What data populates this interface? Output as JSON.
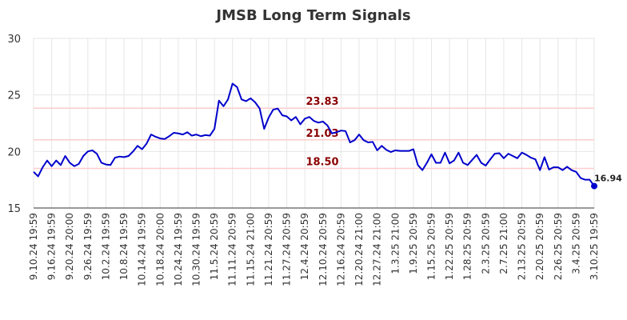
{
  "chart_data": {
    "type": "line",
    "title": "JMSB Long Term Signals",
    "xlabel": "",
    "ylabel": "",
    "ylim": [
      15,
      30
    ],
    "yticks": [
      15,
      20,
      25,
      30
    ],
    "grid": true,
    "x_tick_labels": [
      "9.10.24 19:59",
      "9.16.24 19:59",
      "9.20.24 20:00",
      "9.26.24 19:59",
      "10.2.24 19:59",
      "10.8.24 19:59",
      "10.14.24 19:59",
      "10.18.24 20:00",
      "10.24.24 19:59",
      "10.30.24 19:59",
      "11.5.24 20:59",
      "11.11.24 20:59",
      "11.15.24 21:00",
      "11.21.24 20:59",
      "11.27.24 20:59",
      "12.4.24 20:59",
      "12.10.24 20:59",
      "12.16.24 20:59",
      "12.20.24 21:00",
      "12.27.24 21:00",
      "1.3.25 21:00",
      "1.9.25 20:59",
      "1.15.25 20:59",
      "1.22.25 20:59",
      "1.28.25 20:59",
      "2.3.25 20:59",
      "2.7.25 21:00",
      "2.13.25 20:59",
      "2.20.25 20:59",
      "2.26.25 20:59",
      "3.4.25 20:59",
      "3.10.25 19:59"
    ],
    "reference_lines": [
      {
        "value": 23.83,
        "label": "23.83",
        "color": "#ffcccc"
      },
      {
        "value": 21.03,
        "label": "21.03",
        "color": "#ffcccc"
      },
      {
        "value": 18.5,
        "label": "18.50",
        "color": "#ffcccc"
      }
    ],
    "series": [
      {
        "color": "#0000cc",
        "values": [
          18.2,
          17.8,
          18.6,
          19.2,
          18.7,
          19.2,
          18.8,
          19.6,
          19.0,
          18.7,
          18.9,
          19.6,
          20.0,
          20.1,
          19.8,
          19.0,
          18.85,
          18.8,
          19.45,
          19.55,
          19.5,
          19.6,
          20.0,
          20.5,
          20.2,
          20.7,
          21.5,
          21.3,
          21.15,
          21.1,
          21.35,
          21.65,
          21.6,
          21.5,
          21.7,
          21.4,
          21.5,
          21.35,
          21.45,
          21.4,
          22.0,
          24.5,
          24.0,
          24.6,
          26.0,
          25.7,
          24.6,
          24.45,
          24.7,
          24.35,
          23.8,
          22.0,
          23.0,
          23.7,
          23.8,
          23.2,
          23.1,
          22.75,
          23.05,
          22.4,
          22.9,
          23.05,
          22.7,
          22.55,
          22.65,
          22.3,
          21.6,
          21.7,
          21.85,
          21.8,
          20.8,
          21.0,
          21.5,
          21.0,
          20.8,
          20.85,
          20.1,
          20.5,
          20.15,
          19.95,
          20.1,
          20.05,
          20.05,
          20.05,
          20.2,
          18.8,
          18.35,
          19.0,
          19.75,
          19.0,
          19.0,
          19.9,
          18.95,
          19.2,
          19.9,
          19.0,
          18.8,
          19.25,
          19.7,
          19.0,
          18.75,
          19.3,
          19.8,
          19.85,
          19.4,
          19.8,
          19.6,
          19.4,
          19.9,
          19.7,
          19.45,
          19.3,
          18.35,
          19.5,
          18.4,
          18.6,
          18.6,
          18.35,
          18.65,
          18.35,
          18.2,
          17.65,
          17.5,
          17.5,
          16.94
        ]
      }
    ],
    "last_value_label": "16.94"
  }
}
